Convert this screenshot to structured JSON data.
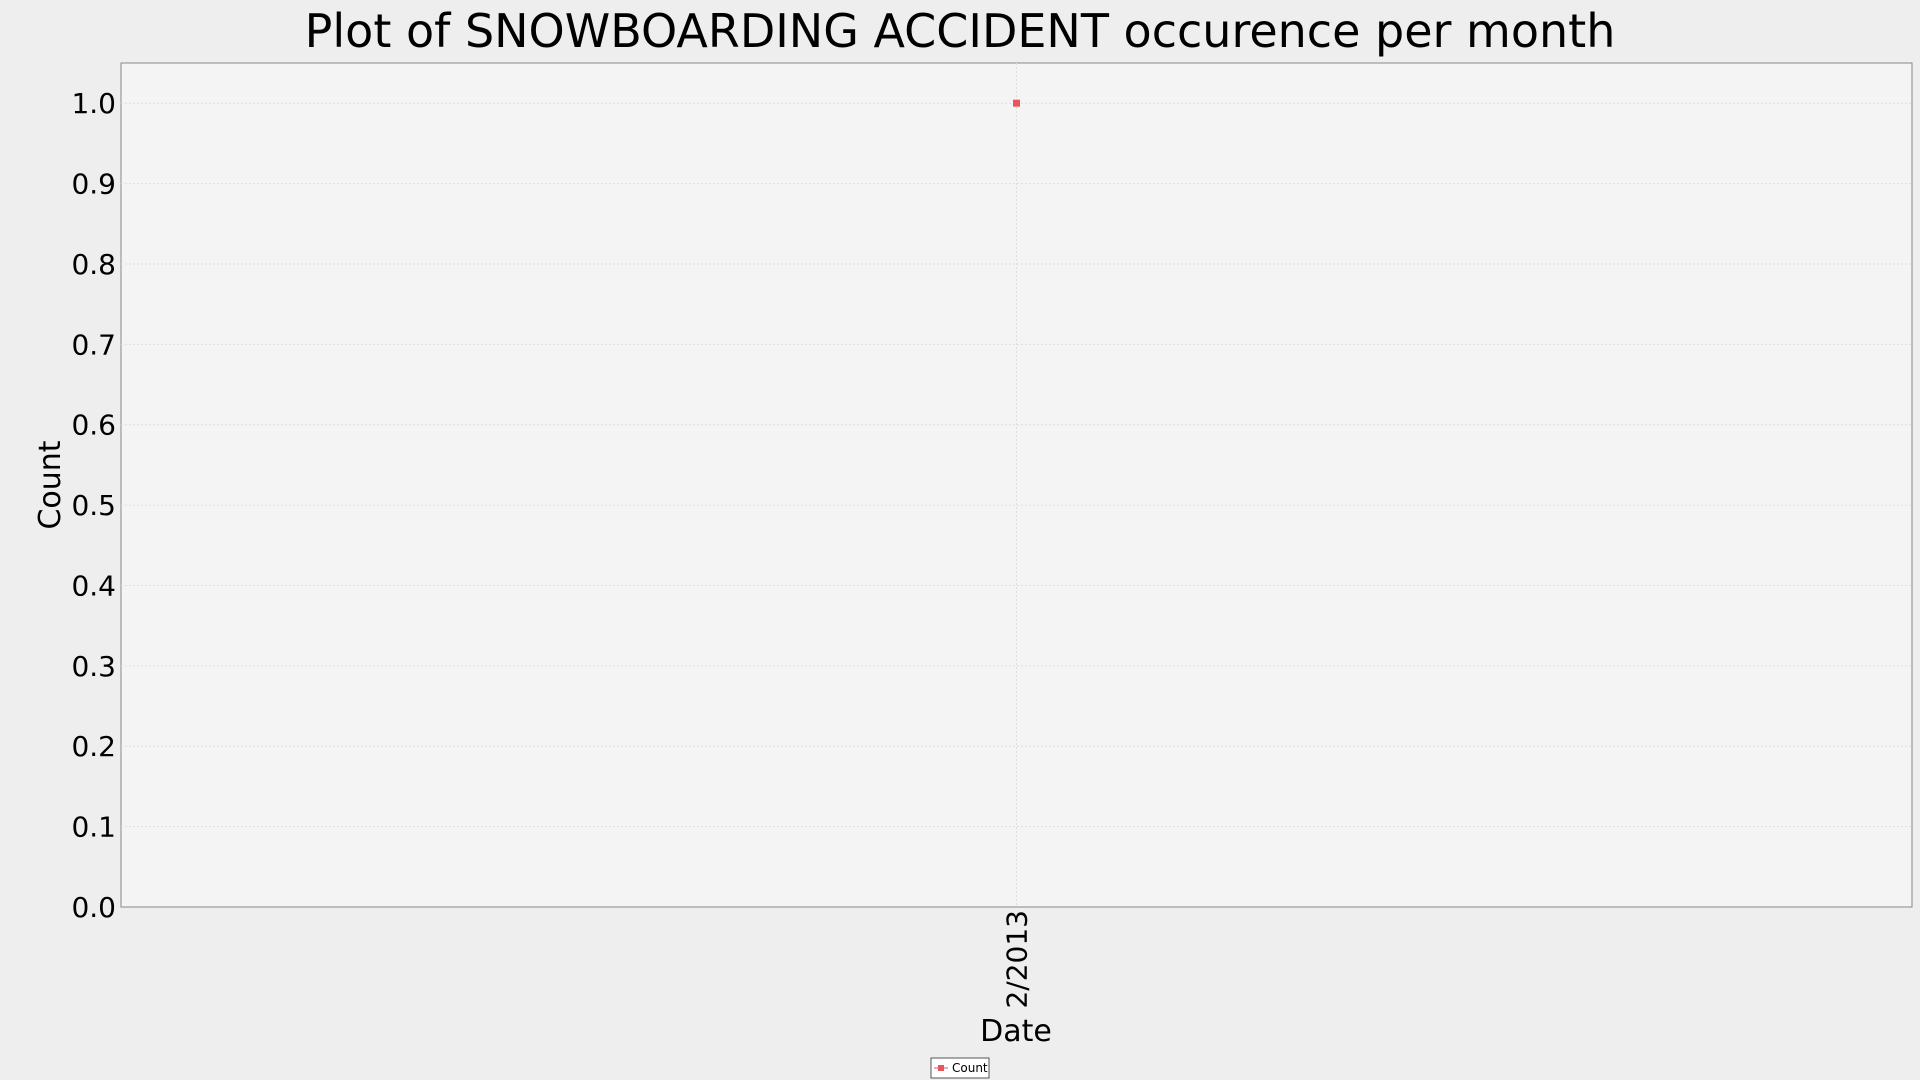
{
  "chart_data": {
    "type": "scatter",
    "title": "Plot of SNOWBOARDING ACCIDENT occurence per month",
    "xlabel": "Date",
    "ylabel": "Count",
    "x": [
      "2/2013"
    ],
    "series": [
      {
        "name": "Count",
        "values": [
          1.0
        ]
      }
    ],
    "ylim": [
      0,
      1.05
    ],
    "yticks": [
      "0.0",
      "0.1",
      "0.2",
      "0.3",
      "0.4",
      "0.5",
      "0.6",
      "0.7",
      "0.8",
      "0.9",
      "1.0"
    ],
    "grid": true,
    "legend_position": "bottom-center",
    "colors": {
      "series": "#e8555a",
      "plot_background": "#f4f4f4",
      "page_background": "#eeeeee",
      "grid": "#dddddd",
      "axis": "#888888"
    }
  }
}
